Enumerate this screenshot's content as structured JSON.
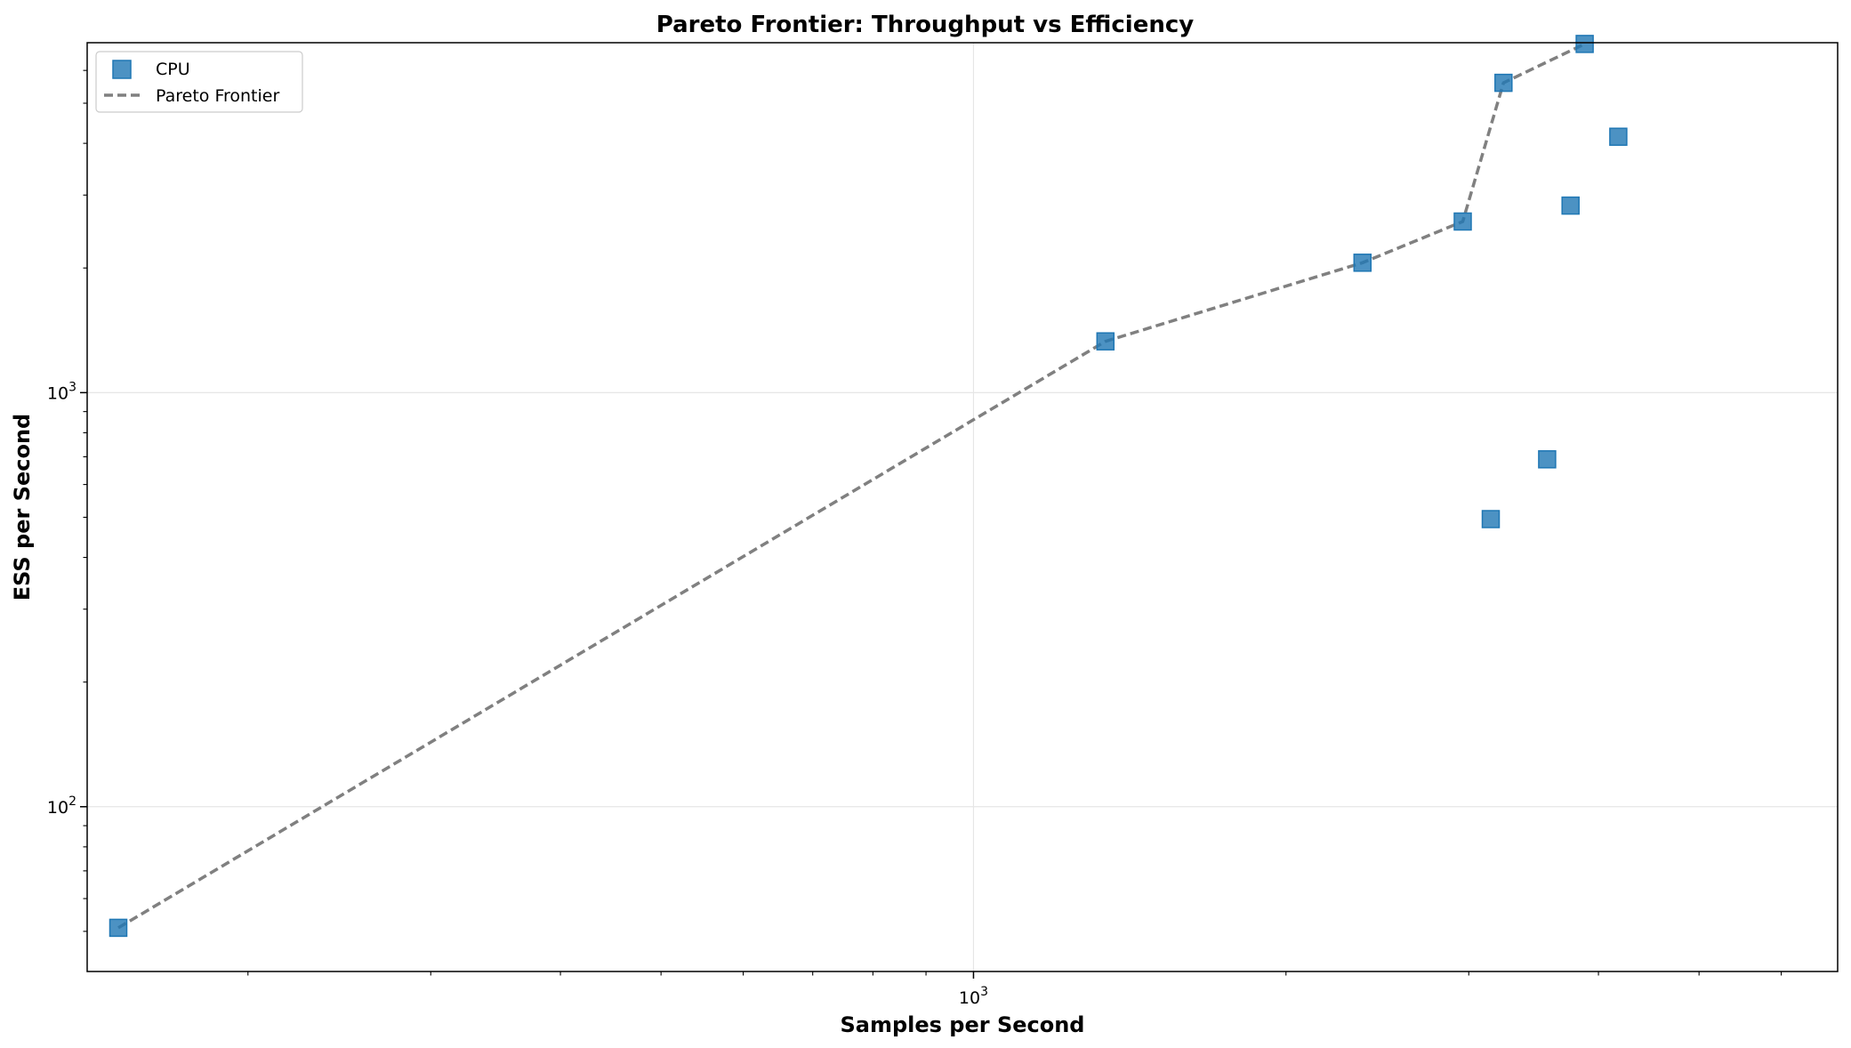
{
  "chart_data": {
    "type": "scatter",
    "title": "Pareto Frontier: Throughput vs Efficiency",
    "xlabel": "Samples per Second",
    "ylabel": "ESS per Second",
    "xscale": "log",
    "yscale": "log",
    "xlim": [
      140,
      6800
    ],
    "ylim": [
      40,
      7000
    ],
    "grid": true,
    "legend_position": "top-left",
    "colors": {
      "points": "#1f77b4",
      "frontier": "#808080",
      "grid": "#e6e6e6"
    },
    "x_major_ticks": [
      {
        "value": 1000,
        "base": "10",
        "exp": "3"
      }
    ],
    "y_major_ticks": [
      {
        "value": 100,
        "base": "10",
        "exp": "2"
      },
      {
        "value": 1000,
        "base": "10",
        "exp": "3"
      }
    ],
    "x_minor_ticks": [
      200,
      300,
      400,
      500,
      600,
      700,
      800,
      900,
      2000,
      3000,
      4000,
      5000,
      6000
    ],
    "y_minor_ticks": [
      50,
      60,
      70,
      80,
      90,
      200,
      300,
      400,
      500,
      600,
      700,
      800,
      900,
      2000,
      3000,
      4000,
      5000,
      6000
    ],
    "series": [
      {
        "name": "CPU",
        "marker": "square",
        "points": [
          {
            "x": 150,
            "y": 51
          },
          {
            "x": 1340,
            "y": 1330
          },
          {
            "x": 2370,
            "y": 2060
          },
          {
            "x": 2960,
            "y": 2590
          },
          {
            "x": 3150,
            "y": 495
          },
          {
            "x": 3240,
            "y": 5600
          },
          {
            "x": 3570,
            "y": 690
          },
          {
            "x": 3760,
            "y": 2830
          },
          {
            "x": 3880,
            "y": 6950
          },
          {
            "x": 4180,
            "y": 4150
          }
        ]
      },
      {
        "name": "Pareto Frontier",
        "style": "dashed",
        "points": [
          {
            "x": 150,
            "y": 51
          },
          {
            "x": 1340,
            "y": 1330
          },
          {
            "x": 2370,
            "y": 2060
          },
          {
            "x": 2960,
            "y": 2590
          },
          {
            "x": 3240,
            "y": 5600
          },
          {
            "x": 3880,
            "y": 6950
          }
        ]
      }
    ]
  }
}
